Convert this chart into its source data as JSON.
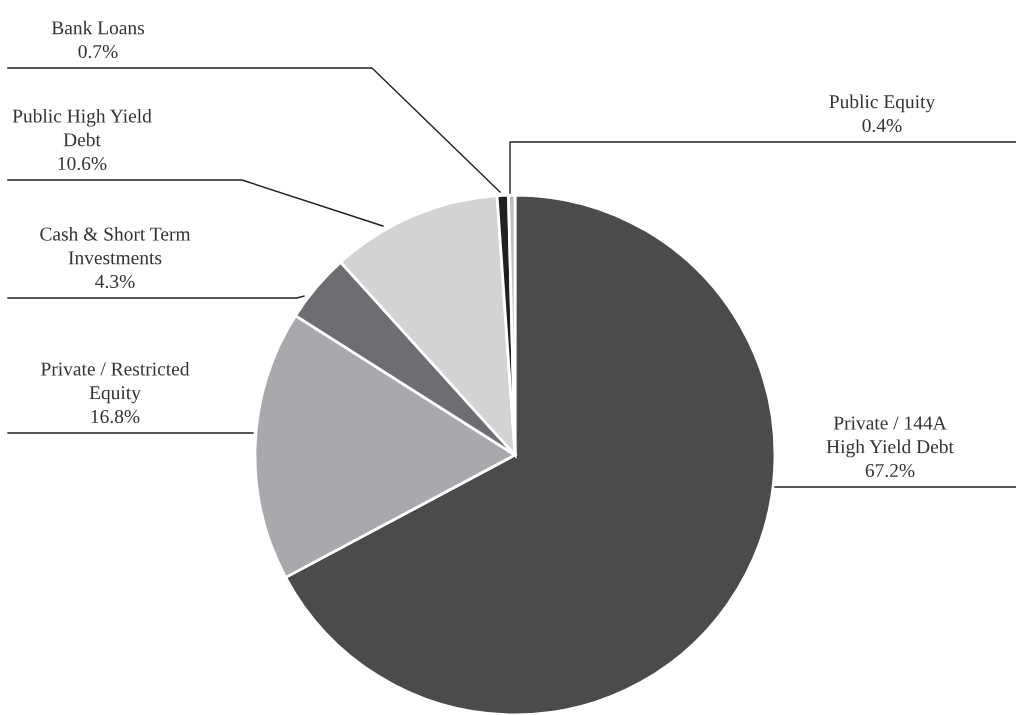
{
  "chart_data": {
    "type": "pie",
    "categories": [
      "Private / 144A\nHigh Yield Debt",
      "Private / Restricted\nEquity",
      "Cash & Short Term\nInvestments",
      "Public High Yield\nDebt",
      "Bank Loans",
      "Public Equity"
    ],
    "values": [
      67.2,
      16.8,
      4.3,
      10.6,
      0.7,
      0.4
    ],
    "value_labels": [
      "67.2%",
      "16.8%",
      "4.3%",
      "10.6%",
      "0.7%",
      "0.4%"
    ],
    "colors": [
      "#4a4b4d",
      "#a7a9ac",
      "#6d6e71",
      "#d1d3d4",
      "#231f20",
      "#bcbec0"
    ]
  }
}
